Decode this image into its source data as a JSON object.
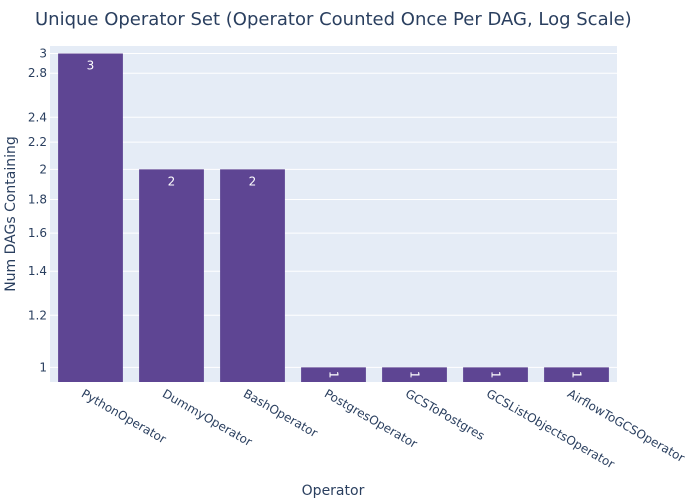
{
  "chart_data": {
    "type": "bar",
    "title": "Unique Operator Set (Operator Counted Once Per DAG, Log Scale)",
    "xlabel": "Operator",
    "ylabel": "Num DAGs Containing",
    "yscale": "log",
    "ylim": [
      0.95,
      3.08
    ],
    "yticks": [
      1,
      1.2,
      1.4,
      1.6,
      1.8,
      2,
      2.2,
      2.4,
      2.8,
      3
    ],
    "ytick_labels": [
      "1",
      "1.2",
      "1.4",
      "1.6",
      "1.8",
      "2",
      "2.2",
      "2.4",
      "2.8",
      "3"
    ],
    "grid": true,
    "categories": [
      "PythonOperator",
      "DummyOperator",
      "BashOperator",
      "PostgresOperator",
      "GCSToPostgres",
      "GCSListObjectsOperator",
      "AirflowToGCSOperator"
    ],
    "values": [
      3,
      2,
      2,
      1,
      1,
      1,
      1
    ],
    "data_labels": [
      "3",
      "2",
      "2",
      "1",
      "1",
      "1",
      "1"
    ],
    "bar_color": "#5e4593",
    "plot_background": "#e5ecf6",
    "text_color": "#2a3f5f"
  }
}
